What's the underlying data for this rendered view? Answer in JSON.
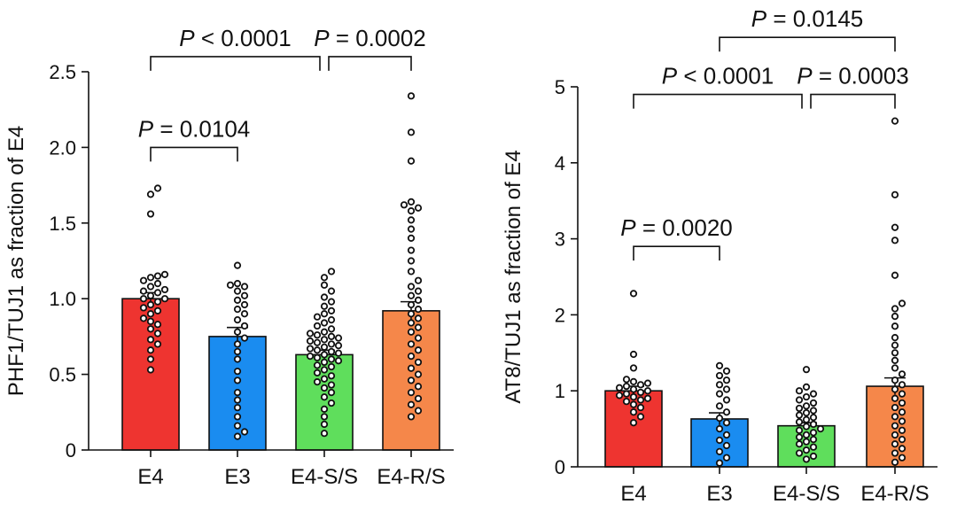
{
  "chart_data": [
    {
      "type": "bar",
      "ylabel": "PHF1/TUJ1 as fraction of E4",
      "ylim": [
        0,
        2.5
      ],
      "yticks": [
        0,
        0.5,
        1.0,
        1.5,
        2.0,
        2.5
      ],
      "ytick_labels": [
        "0",
        "0.5",
        "1.0",
        "1.5",
        "2.0",
        "2.5"
      ],
      "categories": [
        "E4",
        "E3",
        "E4-S/S",
        "E4-R/S"
      ],
      "values": [
        1.0,
        0.75,
        0.63,
        0.92
      ],
      "sem": [
        0.04,
        0.06,
        0.03,
        0.06
      ],
      "colors": [
        "#ee3430",
        "#1a8cf0",
        "#5fde5c",
        "#f5874a"
      ],
      "points": [
        [
          0.53,
          0.6,
          0.66,
          0.7,
          0.73,
          0.77,
          0.8,
          0.83,
          0.85,
          0.87,
          0.9,
          0.92,
          0.94,
          0.96,
          0.98,
          1.0,
          1.0,
          1.02,
          1.04,
          1.05,
          1.06,
          1.08,
          1.1,
          1.12,
          1.14,
          1.15,
          1.16,
          1.56,
          1.69,
          1.73
        ],
        [
          0.09,
          0.12,
          0.16,
          0.22,
          0.28,
          0.33,
          0.38,
          0.46,
          0.52,
          0.6,
          0.65,
          0.7,
          0.74,
          0.78,
          0.82,
          0.86,
          0.9,
          0.93,
          0.96,
          0.99,
          1.02,
          1.05,
          1.08,
          1.09,
          1.1,
          1.22
        ],
        [
          0.11,
          0.17,
          0.22,
          0.27,
          0.31,
          0.35,
          0.38,
          0.41,
          0.43,
          0.45,
          0.47,
          0.49,
          0.51,
          0.53,
          0.55,
          0.56,
          0.58,
          0.59,
          0.6,
          0.61,
          0.62,
          0.63,
          0.64,
          0.65,
          0.66,
          0.67,
          0.68,
          0.69,
          0.7,
          0.71,
          0.72,
          0.73,
          0.74,
          0.75,
          0.76,
          0.77,
          0.78,
          0.8,
          0.82,
          0.84,
          0.86,
          0.88,
          0.9,
          0.92,
          0.95,
          0.98,
          1.01,
          1.05,
          1.09,
          1.14,
          1.18
        ],
        [
          0.22,
          0.26,
          0.3,
          0.34,
          0.38,
          0.42,
          0.46,
          0.5,
          0.54,
          0.58,
          0.62,
          0.66,
          0.7,
          0.74,
          0.78,
          0.81,
          0.84,
          0.87,
          0.9,
          0.93,
          0.96,
          0.99,
          1.02,
          1.05,
          1.08,
          1.12,
          1.18,
          1.25,
          1.32,
          1.4,
          1.46,
          1.52,
          1.58,
          1.6,
          1.62,
          1.64,
          1.91,
          2.1,
          2.34
        ]
      ],
      "comparisons": [
        {
          "from": 0,
          "to": 1,
          "label": "P = 0.0104",
          "y": 2.0
        },
        {
          "from": 0,
          "to": 2,
          "label": "P < 0.0001",
          "y": 2.6
        },
        {
          "from": 2,
          "to": 3,
          "label": "P = 0.0002",
          "y": 2.6
        }
      ]
    },
    {
      "type": "bar",
      "ylabel": "AT8/TUJ1 as fraction of E4",
      "ylim": [
        0,
        5
      ],
      "yticks": [
        0,
        1,
        2,
        3,
        4,
        5
      ],
      "ytick_labels": [
        "0",
        "1",
        "2",
        "3",
        "4",
        "5"
      ],
      "categories": [
        "E4",
        "E3",
        "E4-S/S",
        "E4-R/S"
      ],
      "values": [
        1.0,
        0.63,
        0.54,
        1.06
      ],
      "sem": [
        0.06,
        0.08,
        0.04,
        0.11
      ],
      "colors": [
        "#ee3430",
        "#1a8cf0",
        "#5fde5c",
        "#f5874a"
      ],
      "points": [
        [
          0.58,
          0.66,
          0.72,
          0.78,
          0.82,
          0.86,
          0.88,
          0.9,
          0.92,
          0.94,
          0.96,
          0.98,
          1.0,
          1.02,
          1.04,
          1.06,
          1.08,
          1.1,
          1.12,
          1.15,
          1.3,
          1.48,
          2.28
        ],
        [
          0.05,
          0.12,
          0.2,
          0.28,
          0.35,
          0.42,
          0.5,
          0.58,
          0.64,
          0.72,
          0.8,
          0.88,
          0.96,
          1.02,
          1.08,
          1.14,
          1.2,
          1.26,
          1.33
        ],
        [
          0.1,
          0.14,
          0.18,
          0.22,
          0.26,
          0.3,
          0.33,
          0.36,
          0.39,
          0.42,
          0.45,
          0.48,
          0.5,
          0.53,
          0.56,
          0.59,
          0.62,
          0.65,
          0.68,
          0.71,
          0.74,
          0.77,
          0.8,
          0.84,
          0.88,
          0.92,
          0.96,
          1.0,
          1.05,
          1.28
        ],
        [
          0.06,
          0.12,
          0.18,
          0.24,
          0.3,
          0.36,
          0.42,
          0.48,
          0.54,
          0.6,
          0.66,
          0.72,
          0.78,
          0.84,
          0.9,
          0.96,
          1.02,
          1.08,
          1.14,
          1.22,
          1.3,
          1.4,
          1.5,
          1.6,
          1.7,
          1.85,
          1.98,
          2.08,
          2.15,
          2.52,
          2.98,
          3.15,
          3.58,
          4.55
        ]
      ],
      "comparisons": [
        {
          "from": 0,
          "to": 1,
          "label": "P = 0.0020",
          "y": 2.9
        },
        {
          "from": 0,
          "to": 2,
          "label": "P < 0.0001",
          "y": 4.9
        },
        {
          "from": 2,
          "to": 3,
          "label": "P = 0.0003",
          "y": 4.9
        },
        {
          "from": 1,
          "to": 3,
          "label": "P = 0.0145",
          "y": 5.65
        }
      ]
    }
  ]
}
